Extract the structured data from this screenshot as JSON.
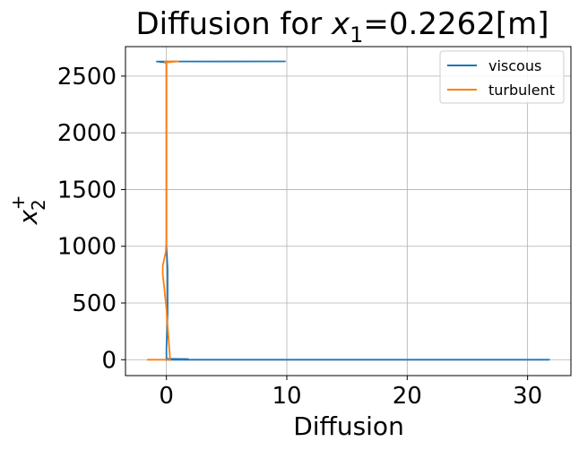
{
  "chart_data": {
    "type": "line",
    "title_prefix": "Diffusion for ",
    "title_var": "x",
    "title_sub": "1",
    "title_suffix": "=0.2262[m]",
    "xlabel": "Diffusion",
    "ylabel_var": "x",
    "ylabel_sub": "2",
    "ylabel_sup": "+",
    "xlim": [
      -3.4,
      33.6
    ],
    "ylim": [
      -140,
      2760
    ],
    "xticks": [
      0,
      10,
      20,
      30
    ],
    "yticks": [
      0,
      500,
      1000,
      1500,
      2000,
      2500
    ],
    "grid": true,
    "legend_position": "top-right",
    "series": [
      {
        "name": "viscous",
        "color": "#1f77b4",
        "points": [
          [
            -0.1,
            0
          ],
          [
            31.8,
            0
          ],
          [
            0.3,
            0
          ],
          [
            0.1,
            3
          ],
          [
            1.8,
            6
          ],
          [
            0.1,
            8
          ],
          [
            0.0,
            12
          ],
          [
            0.0,
            100
          ],
          [
            0.1,
            400
          ],
          [
            0.1,
            800
          ],
          [
            0.0,
            1000
          ],
          [
            0.0,
            1500
          ],
          [
            0.0,
            2000
          ],
          [
            0.0,
            2500
          ],
          [
            0.0,
            2620
          ],
          [
            -0.8,
            2629
          ],
          [
            9.9,
            2630
          ]
        ]
      },
      {
        "name": "turbulent",
        "color": "#ff7f0e",
        "points": [
          [
            -1.6,
            0
          ],
          [
            0.3,
            0
          ],
          [
            0.3,
            10
          ],
          [
            0.2,
            150
          ],
          [
            0.1,
            300
          ],
          [
            0.0,
            450
          ],
          [
            -0.1,
            550
          ],
          [
            -0.2,
            650
          ],
          [
            -0.3,
            750
          ],
          [
            -0.3,
            830
          ],
          [
            -0.2,
            880
          ],
          [
            -0.05,
            950
          ],
          [
            0.0,
            1050
          ],
          [
            0.0,
            1500
          ],
          [
            0.0,
            2000
          ],
          [
            0.0,
            2500
          ],
          [
            0.0,
            2620
          ],
          [
            1.0,
            2630
          ],
          [
            -0.2,
            2628
          ]
        ]
      }
    ]
  }
}
